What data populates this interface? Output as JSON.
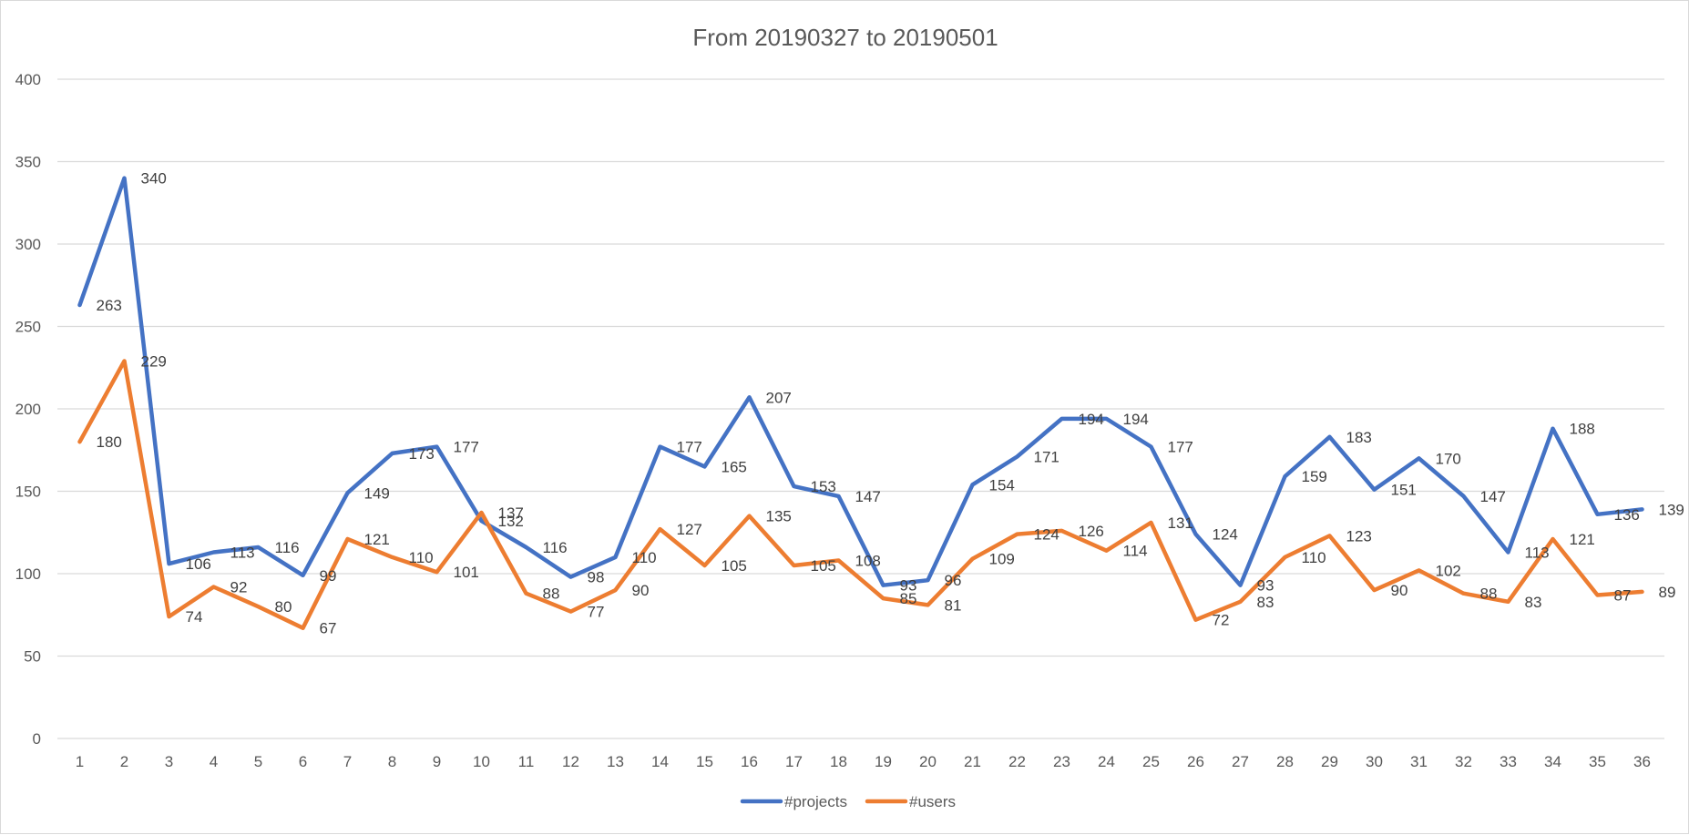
{
  "chart_data": {
    "type": "line",
    "title": "From 20190327 to 20190501",
    "xlabel": "",
    "ylabel": "",
    "ylim": [
      0,
      400
    ],
    "yticks": [
      0,
      50,
      100,
      150,
      200,
      250,
      300,
      350,
      400
    ],
    "grid": true,
    "legend": "bottom",
    "categories": [
      "1",
      "2",
      "3",
      "4",
      "5",
      "6",
      "7",
      "8",
      "9",
      "10",
      "11",
      "12",
      "13",
      "14",
      "15",
      "16",
      "17",
      "18",
      "19",
      "20",
      "21",
      "22",
      "23",
      "24",
      "25",
      "26",
      "27",
      "28",
      "29",
      "30",
      "31",
      "32",
      "33",
      "34",
      "35",
      "36"
    ],
    "series": [
      {
        "name": "#projects",
        "color": "#4472c4",
        "values": [
          263,
          340,
          106,
          113,
          116,
          99,
          149,
          173,
          177,
          132,
          116,
          98,
          110,
          177,
          165,
          207,
          153,
          147,
          93,
          96,
          154,
          171,
          194,
          194,
          177,
          124,
          93,
          159,
          183,
          151,
          170,
          147,
          113,
          188,
          136,
          139
        ]
      },
      {
        "name": "#users",
        "color": "#ed7d31",
        "values": [
          180,
          229,
          74,
          92,
          80,
          67,
          121,
          110,
          101,
          137,
          88,
          77,
          90,
          127,
          105,
          135,
          105,
          108,
          85,
          81,
          109,
          124,
          126,
          114,
          131,
          72,
          83,
          110,
          123,
          90,
          102,
          88,
          83,
          121,
          87,
          89
        ]
      }
    ]
  }
}
